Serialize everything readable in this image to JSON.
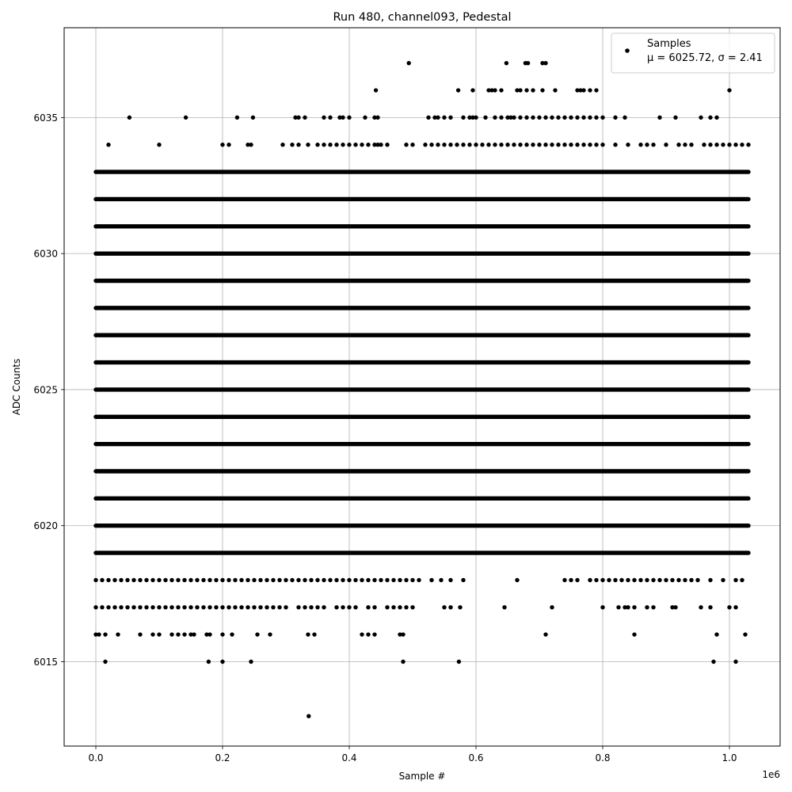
{
  "chart_data": {
    "type": "scatter",
    "title": "Run 480, channel093, Pedestal",
    "xlabel": "Sample #",
    "ylabel": "ADC Counts",
    "x_offset_label": "1e6",
    "xlim": [
      -0.05,
      1.08
    ],
    "ylim": [
      6011.9,
      6038.3
    ],
    "x_ticks": [
      0.0,
      0.2,
      0.4,
      0.6,
      0.8,
      1.0
    ],
    "x_tick_labels": [
      "0.0",
      "0.2",
      "0.4",
      "0.6",
      "0.8",
      "1.0"
    ],
    "y_ticks": [
      6015,
      6020,
      6025,
      6030,
      6035
    ],
    "y_tick_labels": [
      "6015",
      "6020",
      "6025",
      "6030",
      "6035"
    ],
    "grid": true,
    "legend_position": "top-right",
    "marker_color": "#000000",
    "series": [
      {
        "name": "Samples",
        "stats_label": "μ = 6025.72, σ = 2.41",
        "x_range": [
          0.0,
          1.03
        ],
        "dense_levels": [
          6019,
          6020,
          6021,
          6022,
          6023,
          6024,
          6025,
          6026,
          6027,
          6028,
          6029,
          6030,
          6031,
          6032,
          6033
        ],
        "sparse_points": [
          {
            "y": 6034,
            "x": [
              0.02,
              0.1,
              0.2,
              0.21,
              0.24,
              0.245,
              0.295,
              0.31,
              0.32,
              0.335,
              0.35,
              0.36,
              0.37,
              0.38,
              0.39,
              0.4,
              0.41,
              0.42,
              0.43,
              0.44,
              0.445,
              0.45,
              0.46,
              0.49,
              0.5,
              0.52,
              0.53,
              0.54,
              0.55,
              0.56,
              0.57,
              0.58,
              0.59,
              0.6,
              0.61,
              0.62,
              0.63,
              0.64,
              0.65,
              0.66,
              0.67,
              0.68,
              0.69,
              0.7,
              0.71,
              0.72,
              0.73,
              0.74,
              0.75,
              0.76,
              0.77,
              0.78,
              0.79,
              0.8,
              0.82,
              0.84,
              0.86,
              0.87,
              0.88,
              0.9,
              0.92,
              0.93,
              0.94,
              0.96,
              0.97,
              0.98,
              0.99,
              1.0,
              1.01,
              1.02,
              1.03
            ]
          },
          {
            "y": 6035,
            "x": [
              0.053,
              0.142,
              0.223,
              0.248,
              0.315,
              0.32,
              0.33,
              0.36,
              0.37,
              0.385,
              0.39,
              0.4,
              0.425,
              0.44,
              0.445,
              0.525,
              0.535,
              0.54,
              0.55,
              0.56,
              0.58,
              0.59,
              0.595,
              0.6,
              0.615,
              0.63,
              0.64,
              0.65,
              0.655,
              0.66,
              0.67,
              0.68,
              0.69,
              0.7,
              0.71,
              0.72,
              0.73,
              0.74,
              0.75,
              0.76,
              0.77,
              0.78,
              0.79,
              0.8,
              0.82,
              0.835,
              0.89,
              0.915,
              0.955,
              0.97,
              0.98
            ]
          },
          {
            "y": 6036,
            "x": [
              0.442,
              0.572,
              0.595,
              0.62,
              0.625,
              0.63,
              0.64,
              0.665,
              0.67,
              0.68,
              0.69,
              0.705,
              0.725,
              0.76,
              0.765,
              0.77,
              0.78,
              0.79,
              1.0
            ]
          },
          {
            "y": 6037,
            "x": [
              0.494,
              0.648,
              0.678,
              0.682,
              0.705,
              0.71
            ]
          },
          {
            "y": 6018,
            "x": [
              0.0,
              0.01,
              0.02,
              0.03,
              0.04,
              0.05,
              0.06,
              0.07,
              0.08,
              0.09,
              0.1,
              0.11,
              0.12,
              0.13,
              0.14,
              0.15,
              0.16,
              0.17,
              0.18,
              0.19,
              0.2,
              0.21,
              0.22,
              0.23,
              0.24,
              0.25,
              0.26,
              0.27,
              0.28,
              0.29,
              0.3,
              0.31,
              0.32,
              0.33,
              0.34,
              0.35,
              0.36,
              0.37,
              0.38,
              0.39,
              0.4,
              0.41,
              0.42,
              0.43,
              0.44,
              0.45,
              0.46,
              0.47,
              0.48,
              0.49,
              0.5,
              0.51,
              0.53,
              0.545,
              0.56,
              0.58,
              0.665,
              0.74,
              0.75,
              0.76,
              0.78,
              0.79,
              0.8,
              0.81,
              0.82,
              0.83,
              0.84,
              0.85,
              0.86,
              0.87,
              0.88,
              0.89,
              0.9,
              0.91,
              0.92,
              0.93,
              0.94,
              0.95,
              0.97,
              0.99,
              1.01,
              1.02
            ]
          },
          {
            "y": 6017,
            "x": [
              0.0,
              0.01,
              0.02,
              0.03,
              0.04,
              0.05,
              0.06,
              0.07,
              0.08,
              0.09,
              0.1,
              0.11,
              0.12,
              0.13,
              0.14,
              0.15,
              0.16,
              0.17,
              0.18,
              0.19,
              0.2,
              0.21,
              0.22,
              0.23,
              0.24,
              0.25,
              0.26,
              0.27,
              0.28,
              0.29,
              0.3,
              0.32,
              0.33,
              0.34,
              0.35,
              0.36,
              0.38,
              0.39,
              0.4,
              0.41,
              0.43,
              0.44,
              0.46,
              0.47,
              0.48,
              0.49,
              0.5,
              0.55,
              0.56,
              0.575,
              0.645,
              0.72,
              0.8,
              0.825,
              0.835,
              0.84,
              0.85,
              0.87,
              0.88,
              0.91,
              0.915,
              0.955,
              0.97,
              1.0,
              1.01
            ]
          },
          {
            "y": 6016,
            "x": [
              0.0,
              0.005,
              0.015,
              0.035,
              0.07,
              0.09,
              0.1,
              0.12,
              0.13,
              0.14,
              0.15,
              0.155,
              0.175,
              0.18,
              0.2,
              0.215,
              0.255,
              0.275,
              0.335,
              0.345,
              0.42,
              0.43,
              0.44,
              0.48,
              0.485,
              0.71,
              0.85,
              0.98,
              1.025
            ]
          },
          {
            "y": 6015,
            "x": [
              0.015,
              0.178,
              0.2,
              0.245,
              0.485,
              0.573,
              0.975,
              1.01
            ]
          },
          {
            "y": 6013,
            "x": [
              0.336
            ]
          }
        ]
      }
    ]
  }
}
